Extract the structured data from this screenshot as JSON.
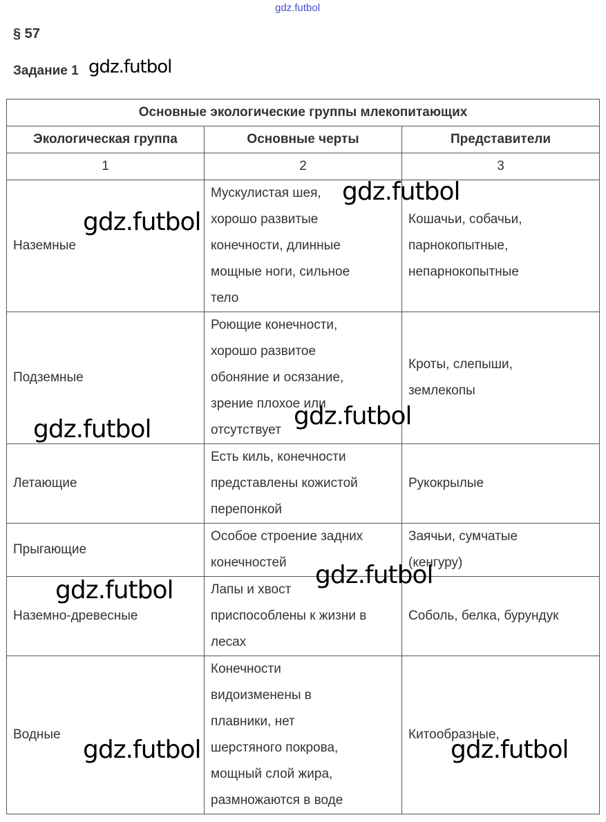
{
  "watermark": "gdz.futbol",
  "section": "§ 57",
  "task": "Задание 1",
  "table": {
    "caption": "Основные экологические группы млекопитающих",
    "headers": [
      "Экологическая группа",
      "Основные черты",
      "Представители"
    ],
    "numbers": [
      "1",
      "2",
      "3"
    ],
    "rows": [
      {
        "group": "Наземные",
        "features": "Мускулистая шея,\nхорошо развитые\nконечности, длинные\nмощные ноги, сильное\nтело",
        "examples": "Кошачьи, собачьи,\nпарнокопытные,\nнепарнокопытные"
      },
      {
        "group": "Подземные",
        "features": "Роющие конечности,\nхорошо развитое\nобоняние и осязание,\nзрение плохое или\nотсутствует",
        "examples": "Кроты, слепыши,\nземлекопы"
      },
      {
        "group": "Летающие",
        "features": "Есть киль, конечности\nпредставлены кожистой\nперепонкой",
        "examples": "Рукокрылые"
      },
      {
        "group": "Прыгающие",
        "features": "Особое строение задних\nконечностей",
        "examples": "Заячьи, сумчатые\n(кенгуру)"
      },
      {
        "group": "Наземно-древесные",
        "features": "Лапы и хвост\nприспособлены к жизни в\nлесах",
        "examples": "Соболь, белка, бурундук"
      },
      {
        "group": "Водные",
        "features": "Конечности\nвидоизменены в\nплавники, нет\nшерстяного покрова,\nмощный слой жира,\nразмножаются в воде",
        "examples": "Китообразные,"
      }
    ]
  }
}
